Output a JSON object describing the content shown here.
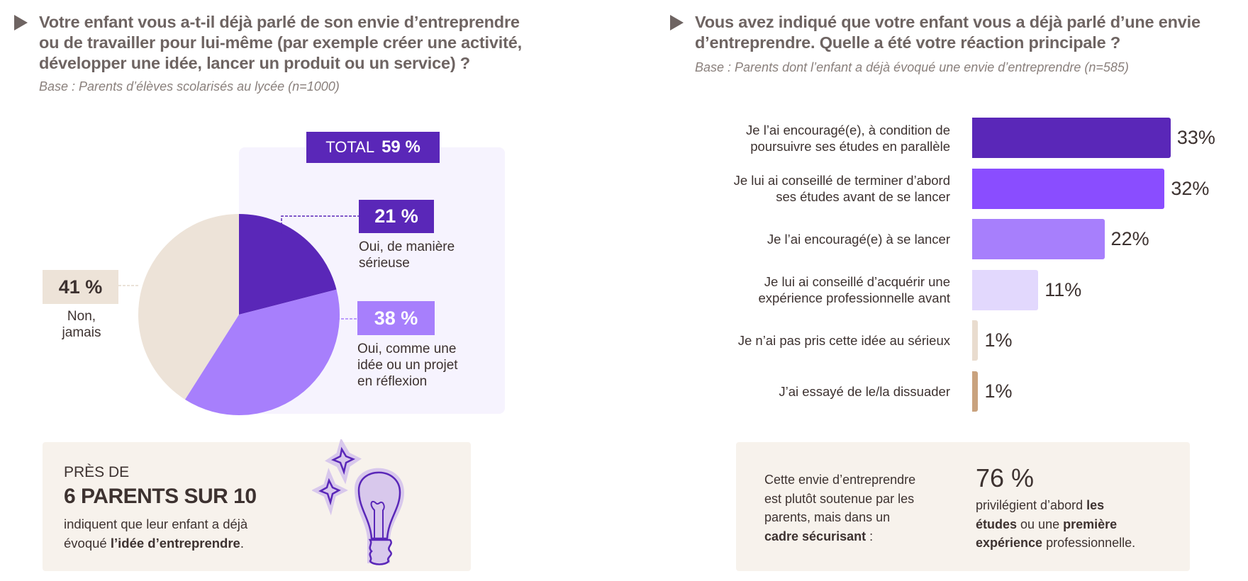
{
  "left": {
    "title_lines": [
      "Votre enfant vous a-t-il déjà parlé de son envie d’entreprendre",
      "ou de travailler pour lui-même (par exemple créer une activité,",
      "développer une idée, lancer un produit ou un service) ?"
    ],
    "base": "Base : Parents d’élèves scolarisés au lycée (n=1000)",
    "total_label": "TOTAL",
    "total_value": "59 %",
    "callouts": [
      {
        "value": "21 %",
        "label_lines": [
          "Oui, de manière",
          "sérieuse"
        ]
      },
      {
        "value": "38 %",
        "label_lines": [
          "Oui, comme une",
          "idée ou un projet",
          "en réflexion"
        ]
      },
      {
        "value": "41 %",
        "label_lines": [
          "Non,",
          "jamais"
        ]
      }
    ],
    "card": {
      "kicker": "PRÈS DE",
      "headline": "6 PARENTS SUR 10",
      "line1": "indiquent que leur enfant a déjà",
      "line2_plain": "évoqué ",
      "line2_bold": "l’idée d’entreprendre",
      "line2_end": ".",
      "icon": "lightbulb-icon"
    }
  },
  "right": {
    "title_lines": [
      "Vous avez indiqué que votre enfant vous a déjà parlé d’une envie",
      "d’entreprendre. Quelle a été votre réaction principale ?"
    ],
    "base": "Base : Parents dont l’enfant a déjà évoqué une envie d’entreprendre (n=585)",
    "card": {
      "left_lines": [
        "Cette envie d’entreprendre",
        "est plutôt soutenue par les",
        "parents, mais dans un"
      ],
      "left_bold": "cadre sécurisant",
      "left_end": " :",
      "stat": "76 %",
      "r1": "privilégient d’abord ",
      "r1b": "les",
      "r2b": "études",
      "r2": " ou une ",
      "r2b2": "première",
      "r3b": "expérience",
      "r3": " professionnelle."
    }
  },
  "chart_data": [
    {
      "type": "pie",
      "slices": [
        {
          "label": "Oui, de manière sérieuse",
          "value": 21,
          "color": "#5a27b8"
        },
        {
          "label": "Oui, comme une idée ou un projet en réflexion",
          "value": 38,
          "color": "#a77ffc"
        },
        {
          "label": "Non, jamais",
          "value": 41,
          "color": "#ede3d8"
        }
      ],
      "total": {
        "label": "TOTAL",
        "value": 59
      }
    },
    {
      "type": "bar",
      "orientation": "horizontal",
      "categories": [
        [
          "Je l’ai encouragé(e), à condition de",
          "poursuivre ses études en parallèle"
        ],
        [
          "Je lui ai conseillé de terminer d’abord",
          "ses études avant de se lancer"
        ],
        [
          "Je l’ai encouragé(e) à se lancer"
        ],
        [
          "Je lui ai conseillé d’acquérir une",
          "expérience professionnelle avant"
        ],
        [
          "Je n’ai pas pris cette idée au sérieux"
        ],
        [
          "J’ai essayé de le/la dissuader"
        ]
      ],
      "values": [
        33,
        32,
        22,
        11,
        1,
        1
      ],
      "value_labels": [
        "33%",
        "32%",
        "22%",
        "11%",
        "1%",
        "1%"
      ],
      "colors": [
        "#5a27b8",
        "#8a4dff",
        "#a77ffc",
        "#e2d8fd",
        "#e9dccf",
        "#c9a27e"
      ]
    }
  ],
  "colors": {
    "title": "#6e6462",
    "accent": "#5a27b8",
    "card_bg": "#f7f2ec",
    "panel_bg": "#f6f3fe"
  }
}
